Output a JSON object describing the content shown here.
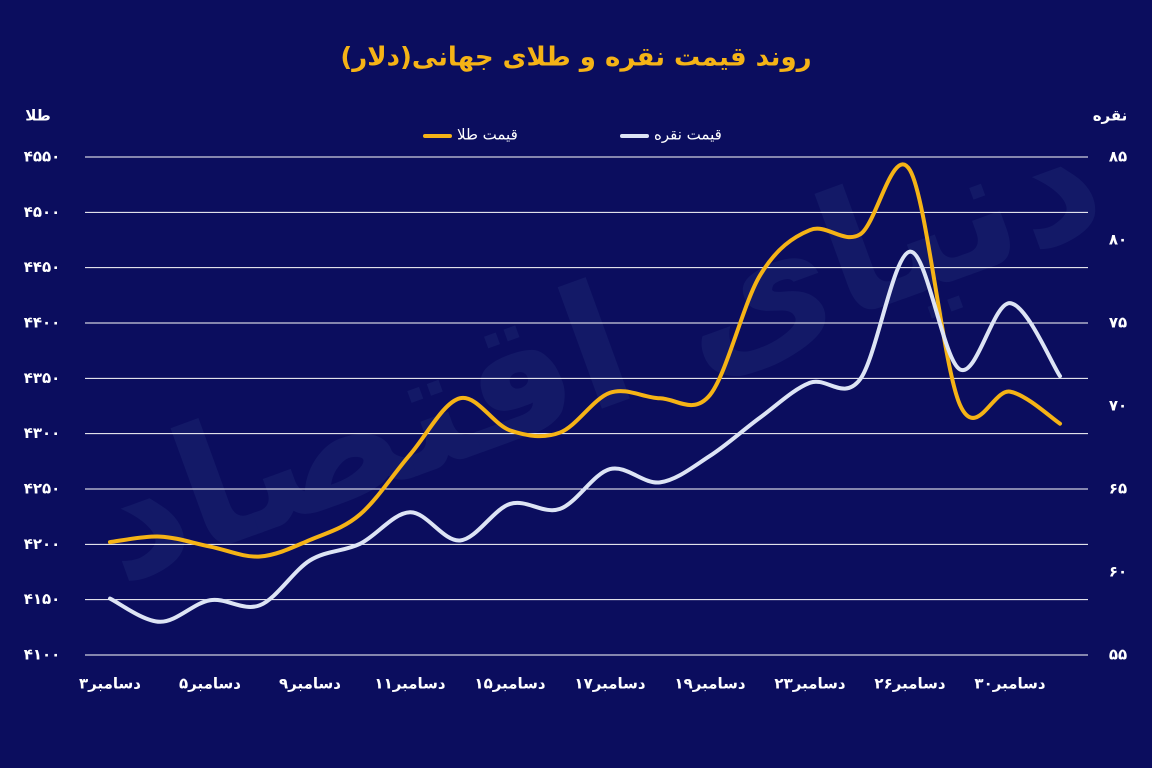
{
  "chart_data": {
    "type": "line",
    "title": "روند قیمت نقره و طلای جهانی(دلار)",
    "watermark": "دنیای اقتصاد",
    "y_label": "طلا",
    "y2_label": "نقره",
    "categories": [
      "۳دسامبر",
      null,
      "۵دسامبر",
      null,
      "۹دسامبر",
      null,
      "۱۱دسامبر",
      null,
      "۱۵دسامبر",
      null,
      "۱۷دسامبر",
      null,
      "۱۹دسامبر",
      null,
      "۲۳دسامبر",
      null,
      "۲۶دسامبر",
      null,
      "۳۰دسامبر",
      null
    ],
    "series": [
      {
        "name": "قیمت طلا",
        "color": "#f5b316",
        "axis": "y",
        "values": [
          4202,
          4207,
          4198,
          4189,
          4204,
          4227,
          4281,
          4332,
          4303,
          4301,
          4337,
          4332,
          4335,
          4443,
          4484,
          4480,
          4538,
          4326,
          4338,
          4309
        ]
      },
      {
        "name": "قیمت نقره",
        "color": "#dde4f5",
        "axis": "y2",
        "values": [
          58.4,
          57.0,
          58.3,
          58.0,
          60.7,
          61.7,
          63.6,
          61.9,
          64.1,
          63.8,
          66.2,
          65.4,
          67.0,
          69.3,
          71.4,
          71.6,
          79.3,
          72.2,
          76.2,
          71.8
        ]
      }
    ],
    "ylim": [
      4100,
      4550
    ],
    "yticks": [
      {
        "value": 4100,
        "label": "۴۱۰۰"
      },
      {
        "value": 4150,
        "label": "۴۱۵۰"
      },
      {
        "value": 4200,
        "label": "۴۲۰۰"
      },
      {
        "value": 4250,
        "label": "۴۲۵۰"
      },
      {
        "value": 4300,
        "label": "۴۳۰۰"
      },
      {
        "value": 4350,
        "label": "۴۳۵۰"
      },
      {
        "value": 4400,
        "label": "۴۴۰۰"
      },
      {
        "value": 4450,
        "label": "۴۴۵۰"
      },
      {
        "value": 4500,
        "label": "۴۵۰۰"
      },
      {
        "value": 4550,
        "label": "۴۵۵۰"
      }
    ],
    "y2lim": [
      55,
      85
    ],
    "y2ticks": [
      {
        "value": 55,
        "label": "۵۵"
      },
      {
        "value": 60,
        "label": "۶۰"
      },
      {
        "value": 65,
        "label": "۶۵"
      },
      {
        "value": 70,
        "label": "۷۰"
      },
      {
        "value": 75,
        "label": "۷۵"
      },
      {
        "value": 80,
        "label": "۸۰"
      },
      {
        "value": 85,
        "label": "۸۵"
      }
    ],
    "grid": true,
    "legend": "top"
  }
}
